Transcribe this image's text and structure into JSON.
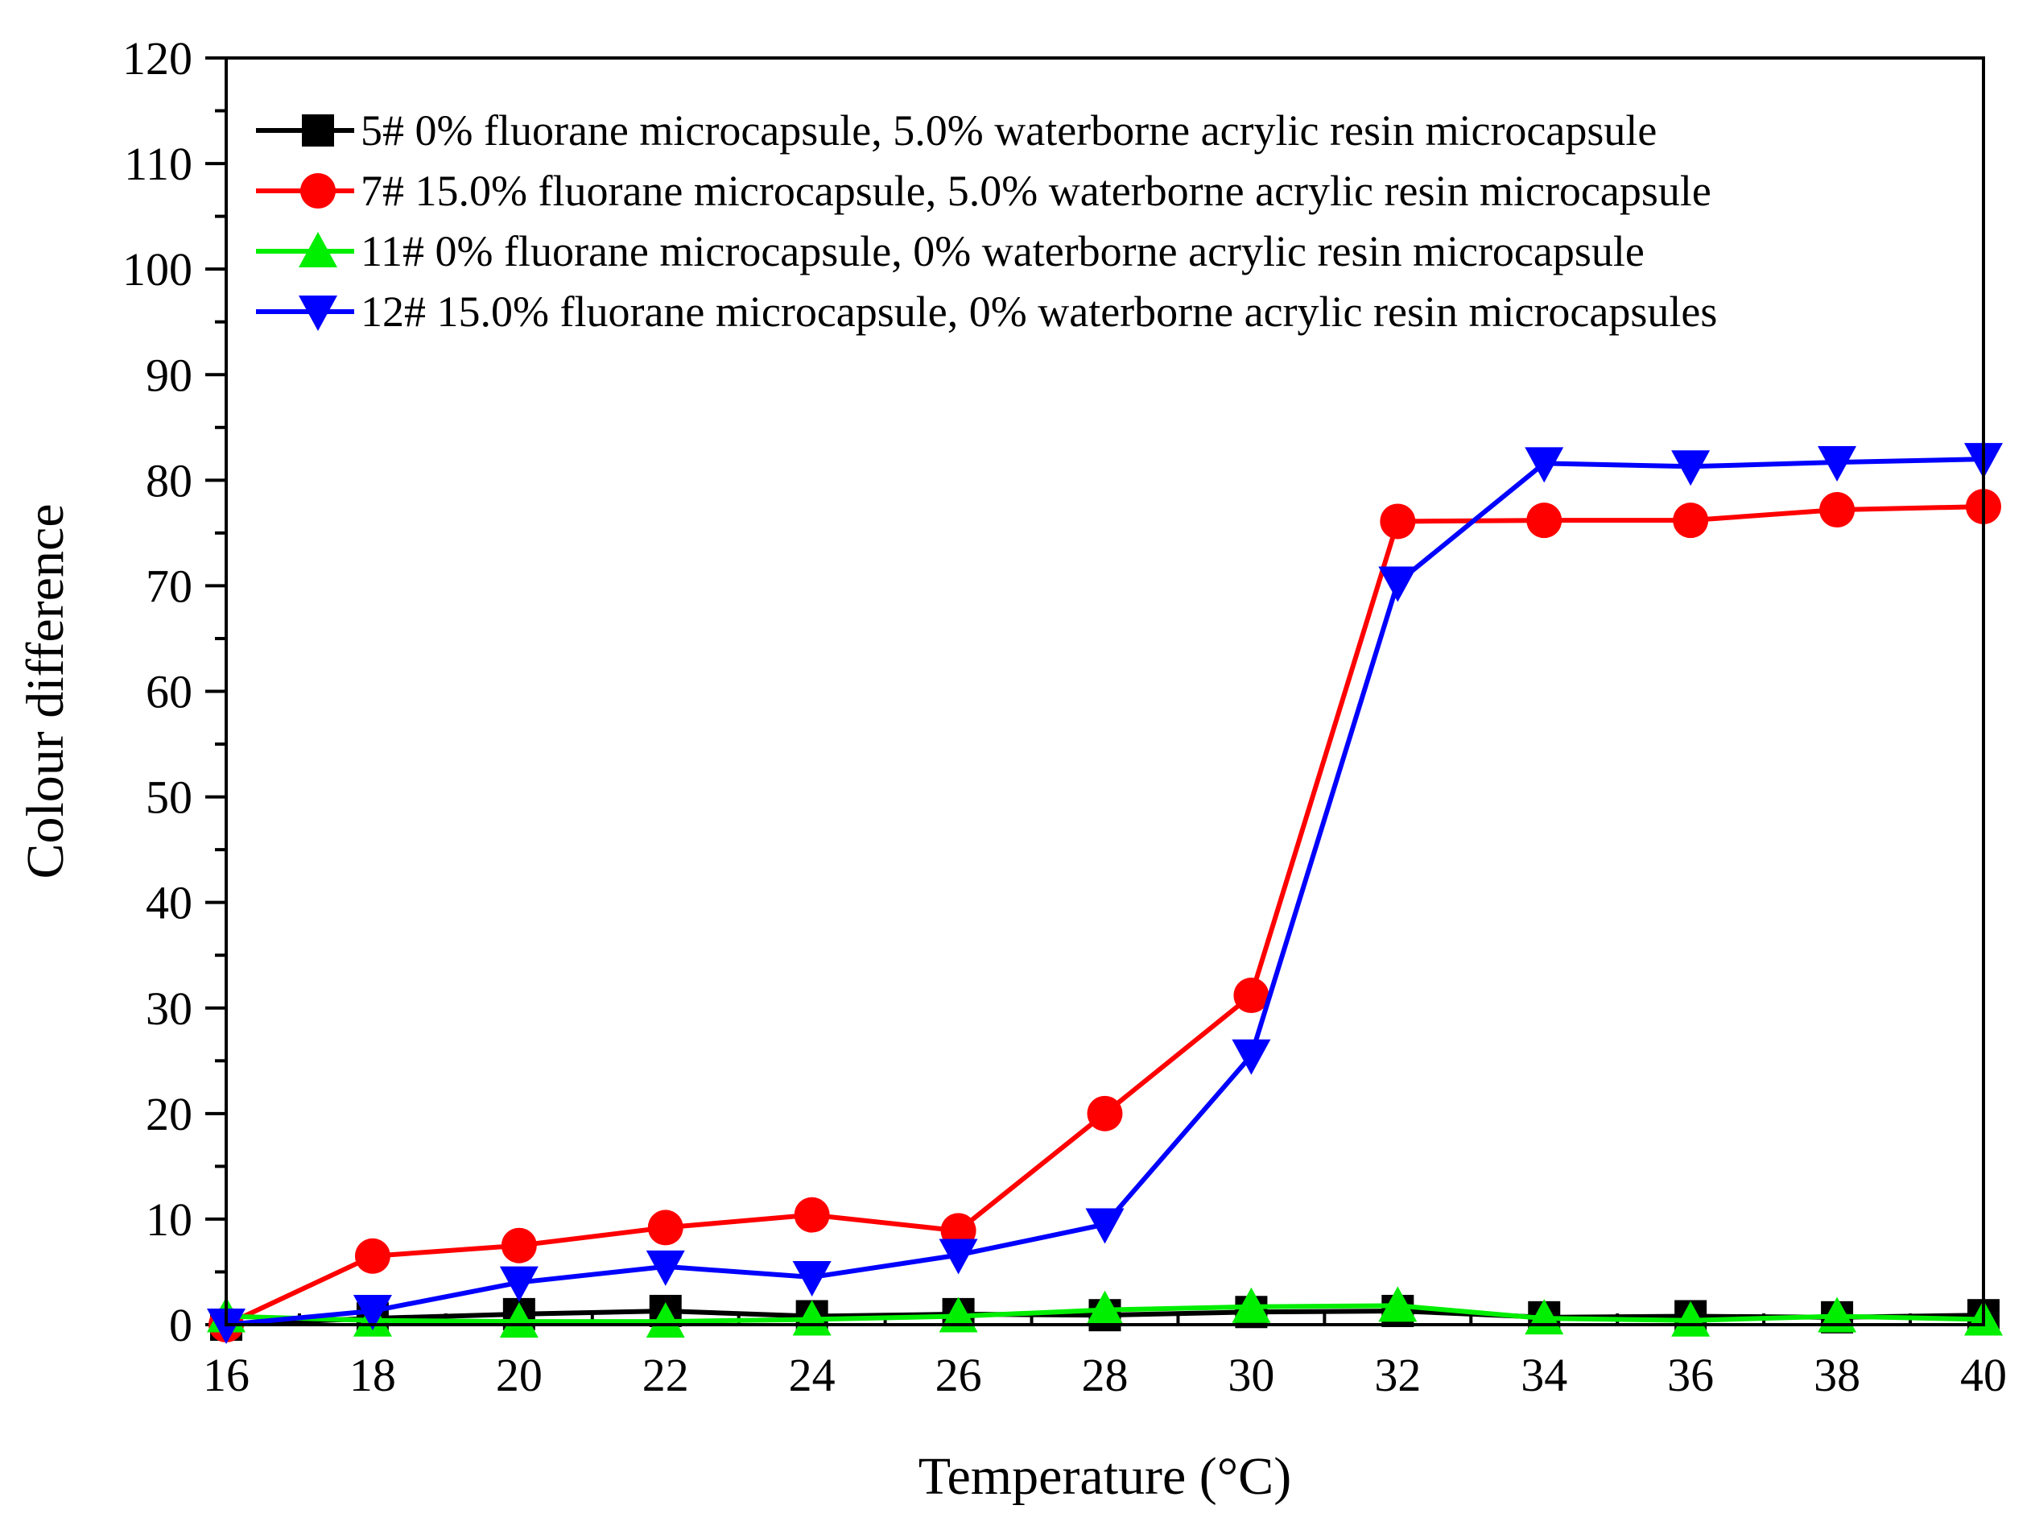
{
  "chart_data": {
    "type": "line",
    "title": "",
    "xlabel": "Temperature (°C)",
    "ylabel": "Colour difference",
    "xlim": [
      16,
      40
    ],
    "ylim": [
      0,
      120
    ],
    "x_major_ticks": [
      16,
      18,
      20,
      22,
      24,
      26,
      28,
      30,
      32,
      34,
      36,
      38,
      40
    ],
    "y_major_ticks": [
      0,
      10,
      20,
      30,
      40,
      50,
      60,
      70,
      80,
      90,
      100,
      110,
      120
    ],
    "x_tick_labels": [
      "16",
      "18",
      "20",
      "22",
      "24",
      "26",
      "28",
      "30",
      "32",
      "34",
      "36",
      "38",
      "40"
    ],
    "y_tick_labels": [
      "0",
      "10",
      "20",
      "30",
      "40",
      "50",
      "60",
      "70",
      "80",
      "90",
      "100",
      "110",
      "120"
    ],
    "grid": false,
    "legend_position": "top-left",
    "x": [
      16,
      18,
      20,
      22,
      24,
      26,
      28,
      30,
      32,
      34,
      36,
      38,
      40
    ],
    "series": [
      {
        "name": "5# 0% fluorane microcapsule, 5.0% waterborne acrylic resin microcapsule",
        "color": "#000000",
        "marker": "square",
        "values": [
          0,
          0.6,
          1.0,
          1.3,
          0.8,
          1.0,
          0.9,
          1.2,
          1.3,
          0.7,
          0.8,
          0.7,
          0.9
        ]
      },
      {
        "name": "7# 15.0% fluorane microcapsule, 5.0% waterborne acrylic resin microcapsule",
        "color": "#ff0000",
        "marker": "circle",
        "values": [
          0,
          6.5,
          7.5,
          9.2,
          10.4,
          8.9,
          20.0,
          31.2,
          76.1,
          76.2,
          76.2,
          77.2,
          77.5
        ]
      },
      {
        "name": "11# 0% fluorane microcapsule, 0% waterborne acrylic resin microcapsule",
        "color": "#00ee00",
        "marker": "triangle-up",
        "values": [
          0.8,
          0.4,
          0.3,
          0.3,
          0.5,
          0.8,
          1.4,
          1.7,
          1.8,
          0.6,
          0.4,
          0.8,
          0.5
        ]
      },
      {
        "name": "12# 15.0% fluorane microcapsule, 0% waterborne acrylic resin microcapsules",
        "color": "#0000ff",
        "marker": "triangle-down",
        "values": [
          0,
          1.3,
          4.0,
          5.5,
          4.5,
          6.6,
          9.5,
          25.5,
          70.3,
          81.6,
          81.3,
          81.7,
          82.0
        ]
      }
    ]
  }
}
